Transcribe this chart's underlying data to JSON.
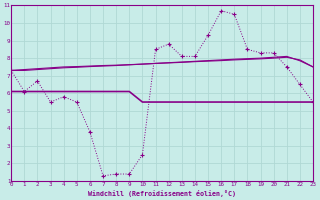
{
  "xlabel": "Windchill (Refroidissement éolien,°C)",
  "xlim": [
    0,
    23
  ],
  "ylim": [
    1,
    11
  ],
  "xticks": [
    0,
    1,
    2,
    3,
    4,
    5,
    6,
    7,
    8,
    9,
    10,
    11,
    12,
    13,
    14,
    15,
    16,
    17,
    18,
    19,
    20,
    21,
    22,
    23
  ],
  "yticks": [
    1,
    2,
    3,
    4,
    5,
    6,
    7,
    8,
    9,
    10,
    11
  ],
  "background_color": "#c8ece8",
  "line_color": "#880088",
  "grid_color": "#b0d8d4",
  "line1_x": [
    0,
    1,
    2,
    3,
    4,
    5,
    6,
    7,
    8,
    9,
    10,
    11,
    12,
    13,
    14,
    15,
    16,
    17,
    18,
    19,
    20,
    21,
    22,
    23
  ],
  "line1_y": [
    7.3,
    6.1,
    6.7,
    5.5,
    5.8,
    5.5,
    3.8,
    1.3,
    1.4,
    1.4,
    2.5,
    8.5,
    8.8,
    8.1,
    8.1,
    9.3,
    10.7,
    10.5,
    8.5,
    8.3,
    8.3,
    7.5,
    6.5,
    5.5
  ],
  "line2_x": [
    0,
    1,
    2,
    3,
    4,
    5,
    6,
    7,
    8,
    9,
    10,
    11,
    12,
    13,
    14,
    15,
    16,
    17,
    18,
    19,
    20,
    21,
    22,
    23
  ],
  "line2_y": [
    6.1,
    6.1,
    6.1,
    6.1,
    6.1,
    6.1,
    6.1,
    6.1,
    6.1,
    6.1,
    5.5,
    5.5,
    5.5,
    5.5,
    5.5,
    5.5,
    5.5,
    5.5,
    5.5,
    5.5,
    5.5,
    5.5,
    5.5,
    5.5
  ],
  "line3_x": [
    0,
    1,
    2,
    3,
    4,
    5,
    6,
    7,
    8,
    9,
    10,
    11,
    12,
    13,
    14,
    15,
    16,
    17,
    18,
    19,
    20,
    21,
    22,
    23
  ],
  "line3_y": [
    7.3,
    7.35,
    7.4,
    7.45,
    7.5,
    7.52,
    7.55,
    7.58,
    7.6,
    7.63,
    7.66,
    7.7,
    7.73,
    7.76,
    7.8,
    7.83,
    7.86,
    7.9,
    7.93,
    7.96,
    8.0,
    8.05,
    7.9,
    7.5
  ],
  "line4_x": [
    0,
    1,
    2,
    3,
    4,
    5,
    6,
    7,
    8,
    9,
    10,
    11,
    12,
    13,
    14,
    15,
    16,
    17,
    18,
    19,
    20,
    21,
    22,
    23
  ],
  "line4_y": [
    7.3,
    7.3,
    7.35,
    7.4,
    7.45,
    7.48,
    7.52,
    7.55,
    7.58,
    7.62,
    7.66,
    7.7,
    7.74,
    7.78,
    7.82,
    7.86,
    7.9,
    7.94,
    7.97,
    8.0,
    8.05,
    8.1,
    7.85,
    7.5
  ]
}
